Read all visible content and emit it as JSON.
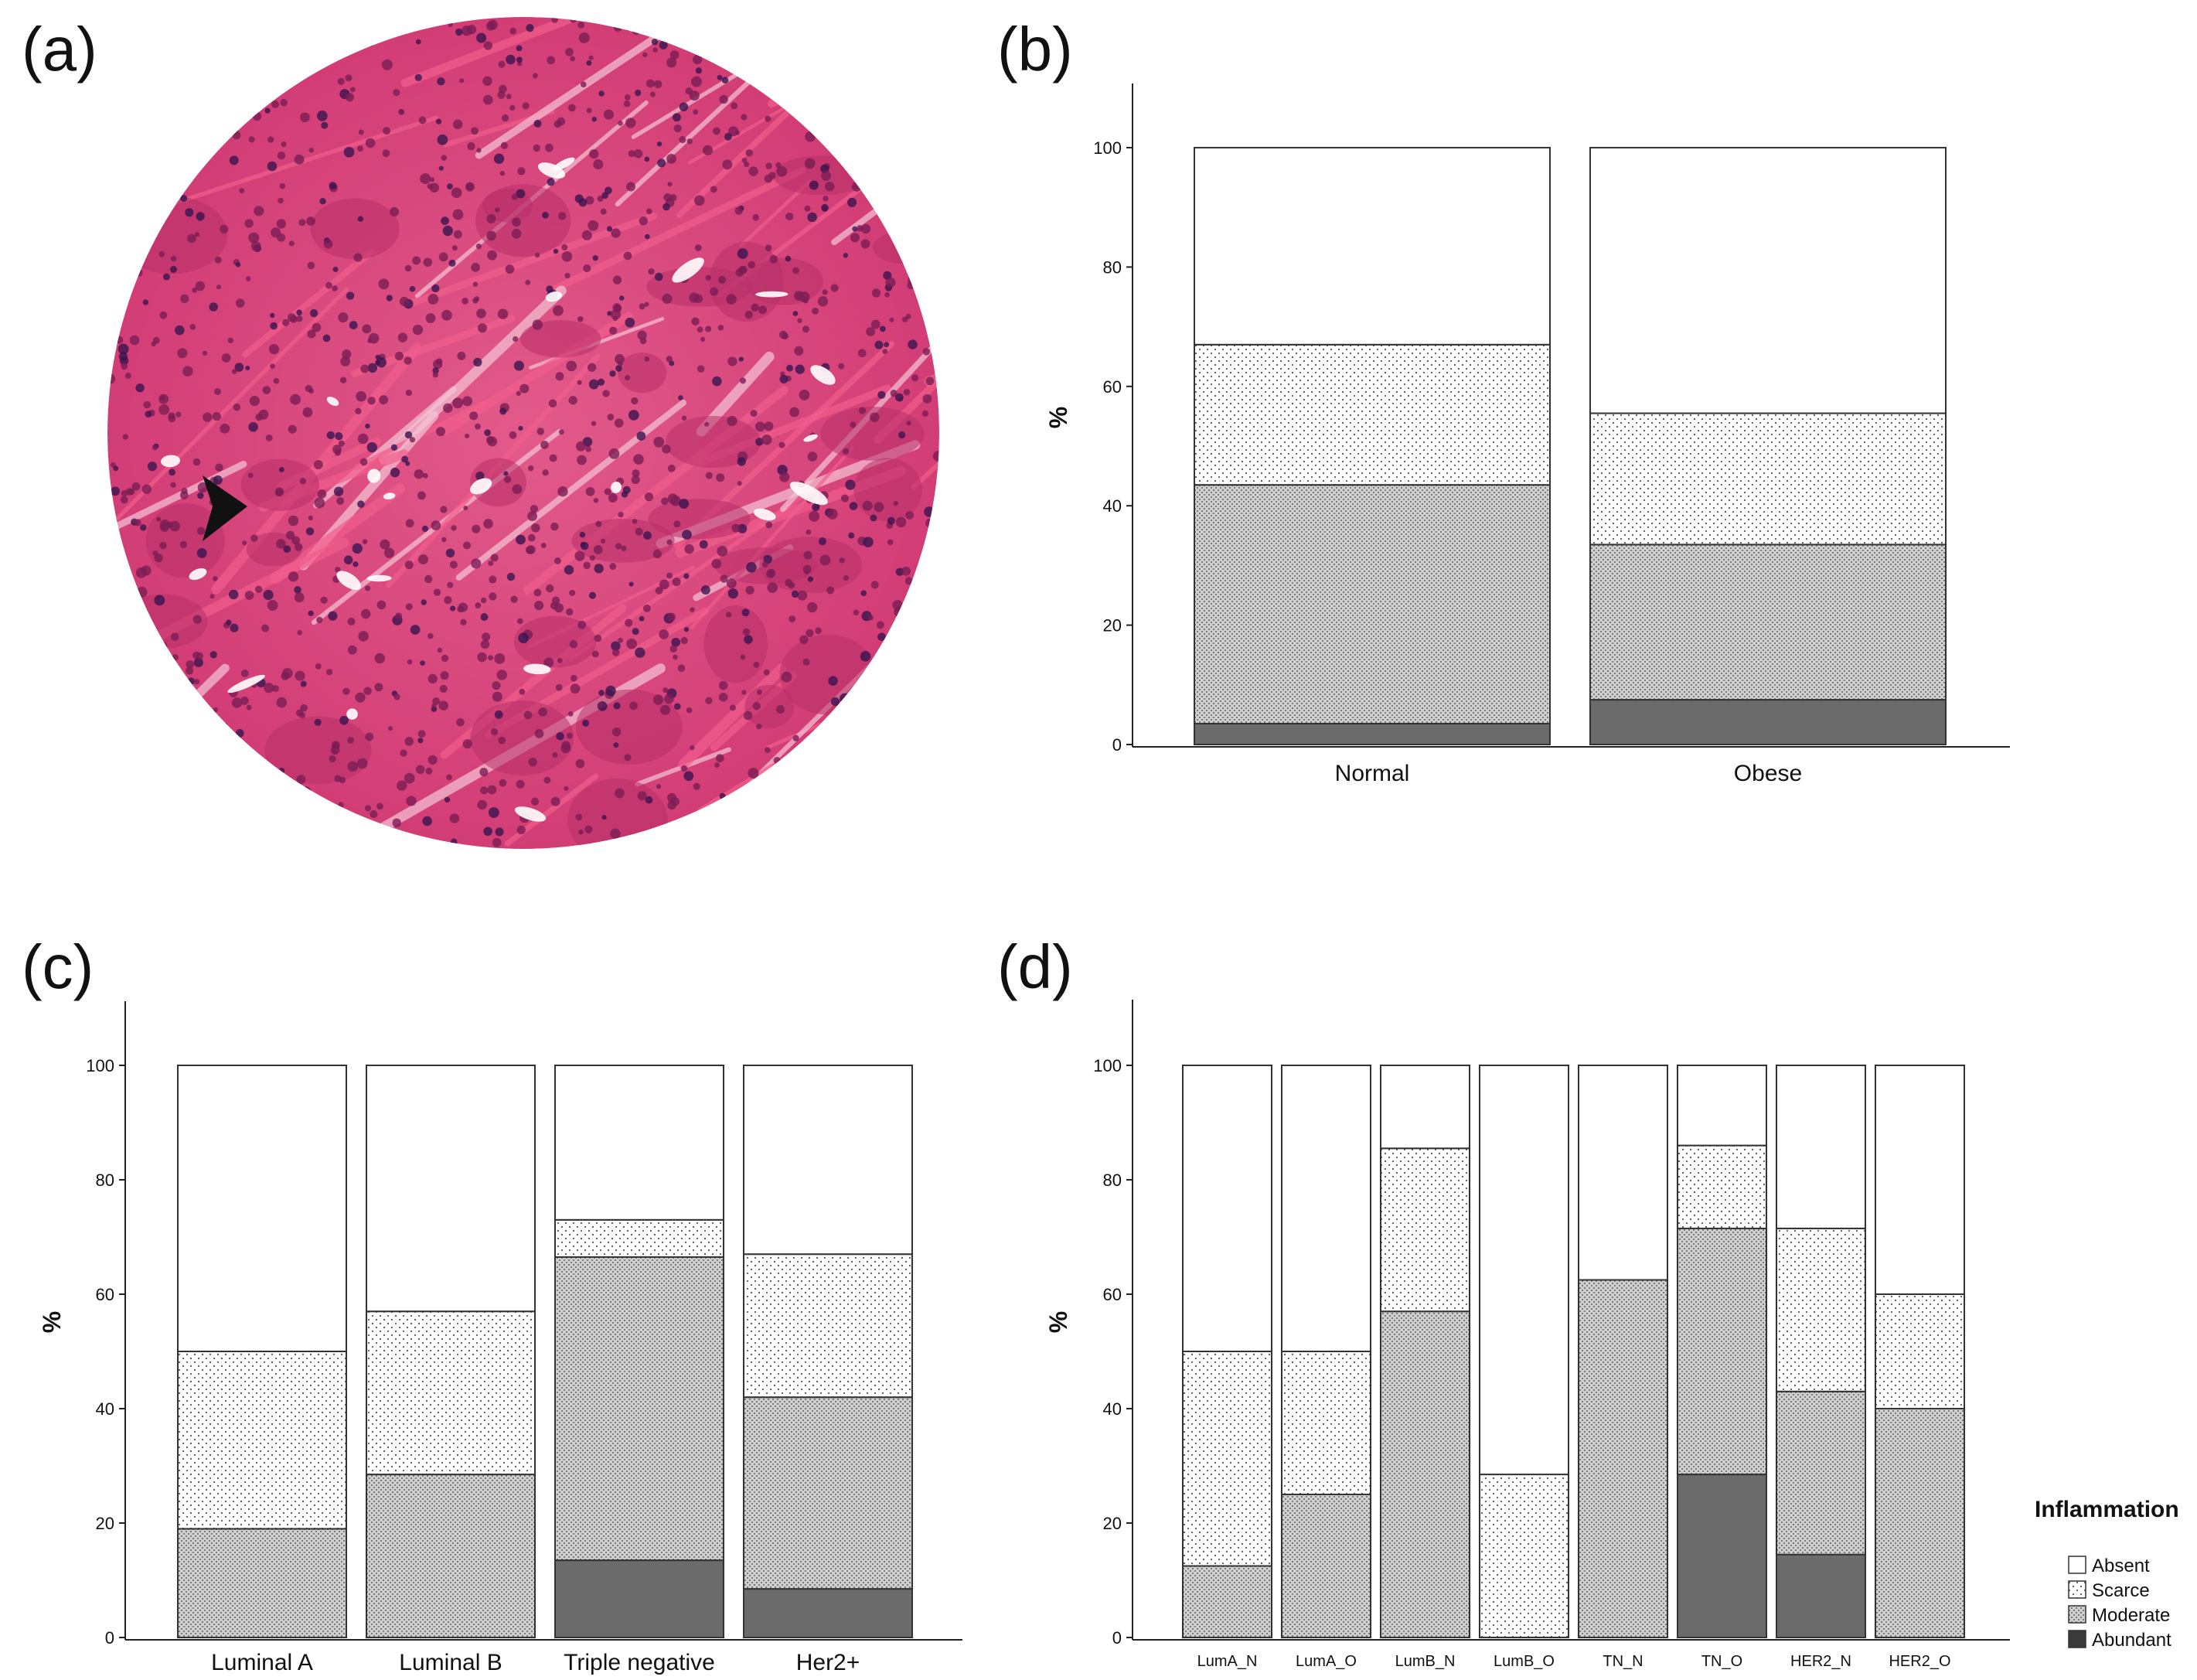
{
  "panels": {
    "a": "(a)",
    "b": "(b)",
    "c": "(c)",
    "d": "(d)"
  },
  "colors": {
    "absent": "#ffffff",
    "abundant": "#6b6b6b",
    "stroke": "#333333",
    "tissue_pink": "#d9457a",
    "tissue_dark": "#8a1d55",
    "stroma": "#f07aa0"
  },
  "chart_data": [
    {
      "panel": "b",
      "type": "bar",
      "stacked": true,
      "xlabel": "",
      "ylabel": "%",
      "ylim": [
        0,
        100
      ],
      "yticks": [
        0,
        20,
        40,
        60,
        80,
        100
      ],
      "categories": [
        "Normal",
        "Obese"
      ],
      "series": [
        {
          "name": "Abundant",
          "values": [
            3.5,
            7.5
          ]
        },
        {
          "name": "Moderate",
          "values": [
            40,
            26
          ]
        },
        {
          "name": "Scarce",
          "values": [
            23.5,
            22
          ]
        },
        {
          "name": "Absent",
          "values": [
            33,
            44.5
          ]
        }
      ]
    },
    {
      "panel": "c",
      "type": "bar",
      "stacked": true,
      "xlabel": "",
      "ylabel": "%",
      "ylim": [
        0,
        100
      ],
      "yticks": [
        0,
        20,
        40,
        60,
        80,
        100
      ],
      "categories": [
        "Luminal A",
        "Luminal B",
        "Triple negative",
        "Her2+"
      ],
      "series": [
        {
          "name": "Abundant",
          "values": [
            0,
            0,
            13.5,
            8.5
          ]
        },
        {
          "name": "Moderate",
          "values": [
            19,
            28.5,
            53,
            33.5
          ]
        },
        {
          "name": "Scarce",
          "values": [
            31,
            28.5,
            6.5,
            25
          ]
        },
        {
          "name": "Absent",
          "values": [
            50,
            43,
            27,
            33
          ]
        }
      ]
    },
    {
      "panel": "d",
      "type": "bar",
      "stacked": true,
      "xlabel": "",
      "ylabel": "%",
      "ylim": [
        0,
        100
      ],
      "yticks": [
        0,
        20,
        40,
        60,
        80,
        100
      ],
      "categories": [
        "LumA_N",
        "LumA_O",
        "LumB_N",
        "LumB_O",
        "TN_N",
        "TN_O",
        "HER2_N",
        "HER2_O"
      ],
      "series": [
        {
          "name": "Abundant",
          "values": [
            0,
            0,
            0,
            0,
            0,
            28.5,
            14.5,
            0
          ]
        },
        {
          "name": "Moderate",
          "values": [
            12.5,
            25,
            57,
            0,
            62.5,
            43,
            28.5,
            40
          ]
        },
        {
          "name": "Scarce",
          "values": [
            37.5,
            25,
            28.5,
            28.5,
            0,
            14.5,
            28.5,
            20
          ]
        },
        {
          "name": "Absent",
          "values": [
            50,
            50,
            14.5,
            71.5,
            37.5,
            14,
            28.5,
            40
          ]
        }
      ]
    }
  ],
  "legend": {
    "title": "Inflammation",
    "items": [
      "Absent",
      "Scarce",
      "Moderate",
      "Abundant"
    ]
  }
}
